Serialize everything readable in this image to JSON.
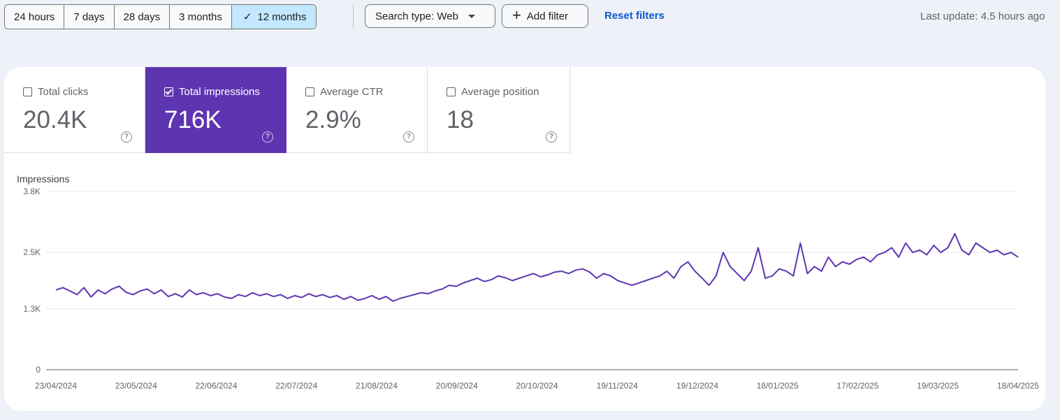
{
  "toolbar": {
    "ranges": [
      "24 hours",
      "7 days",
      "28 days",
      "3 months",
      "12 months"
    ],
    "selected_range": "12 months",
    "search_type_label": "Search type: Web",
    "add_filter_label": "Add filter",
    "reset_filters_label": "Reset filters",
    "last_update": "Last update: 4.5 hours ago"
  },
  "metrics": [
    {
      "label": "Total clicks",
      "value": "20.4K",
      "checked": false
    },
    {
      "label": "Total impressions",
      "value": "716K",
      "checked": true
    },
    {
      "label": "Average CTR",
      "value": "2.9%",
      "checked": false
    },
    {
      "label": "Average position",
      "value": "18",
      "checked": false
    }
  ],
  "colors": {
    "accent": "#5e35b1",
    "selected_range_bg": "#c2e7ff",
    "link": "#0b57d0",
    "line": "#5e35b1"
  },
  "icons": {
    "check": "check-icon",
    "dropdown": "caret-down-icon",
    "add": "plus-icon",
    "help": "help-circle-icon"
  },
  "chart_data": {
    "type": "line",
    "ylabel": "Impressions",
    "ylim": [
      0,
      3800
    ],
    "yticks": [
      0,
      1300,
      2500,
      3800
    ],
    "ytick_labels": [
      "0",
      "1.3K",
      "2.5K",
      "3.8K"
    ],
    "x_tick_labels": [
      "23/04/2024",
      "23/05/2024",
      "22/06/2024",
      "22/07/2024",
      "21/08/2024",
      "20/09/2024",
      "20/10/2024",
      "19/11/2024",
      "19/12/2024",
      "18/01/2025",
      "17/02/2025",
      "19/03/2025",
      "18/04/2025"
    ],
    "grid": true,
    "series": [
      {
        "values": [
          1700,
          1750,
          1680,
          1600,
          1750,
          1550,
          1700,
          1620,
          1720,
          1780,
          1650,
          1600,
          1680,
          1720,
          1620,
          1700,
          1560,
          1620,
          1550,
          1700,
          1600,
          1640,
          1580,
          1620,
          1550,
          1520,
          1600,
          1560,
          1640,
          1580,
          1620,
          1560,
          1600,
          1520,
          1580,
          1540,
          1620,
          1560,
          1600,
          1540,
          1580,
          1500,
          1560,
          1480,
          1520,
          1580,
          1500,
          1560,
          1460,
          1520,
          1560,
          1600,
          1640,
          1620,
          1680,
          1720,
          1800,
          1780,
          1850,
          1900,
          1950,
          1880,
          1920,
          2000,
          1960,
          1900,
          1950,
          2000,
          2050,
          1980,
          2020,
          2080,
          2100,
          2050,
          2120,
          2150,
          2080,
          1950,
          2050,
          2000,
          1900,
          1850,
          1800,
          1850,
          1900,
          1950,
          2000,
          2100,
          1950,
          2200,
          2300,
          2100,
          1950,
          1800,
          2000,
          2500,
          2200,
          2050,
          1900,
          2100,
          2600,
          1950,
          2000,
          2150,
          2100,
          2000,
          2700,
          2050,
          2200,
          2100,
          2400,
          2200,
          2300,
          2250,
          2350,
          2400,
          2300,
          2450,
          2500,
          2600,
          2400,
          2700,
          2500,
          2550,
          2450,
          2650,
          2500,
          2600,
          2900,
          2550,
          2450,
          2700,
          2600,
          2500,
          2550,
          2450,
          2500,
          2400
        ]
      }
    ]
  }
}
